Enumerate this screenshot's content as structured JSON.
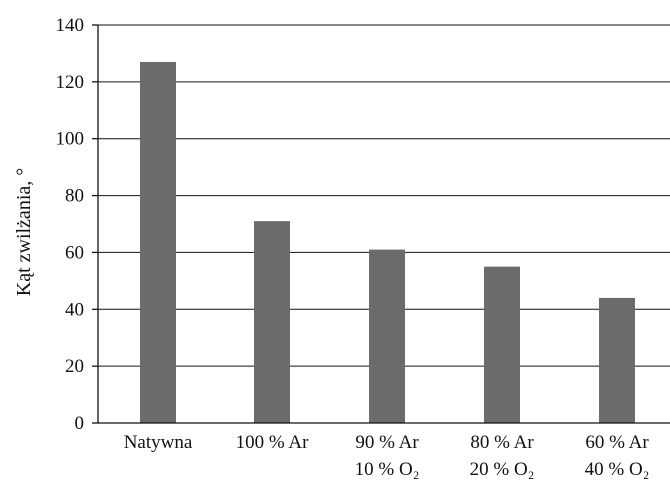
{
  "chart_data": {
    "type": "bar",
    "title": "",
    "xlabel": "",
    "ylabel": "Kąt zwilżania, °",
    "ylim": [
      0,
      140
    ],
    "yticks": [
      0,
      20,
      40,
      60,
      80,
      100,
      120,
      140
    ],
    "grid": true,
    "categories": [
      [
        "Natywna"
      ],
      [
        "100 % Ar"
      ],
      [
        "90 % Ar",
        "10 % O₂"
      ],
      [
        "80 % Ar",
        "20 % O₂"
      ],
      [
        "60 % Ar",
        "40 % O₂"
      ]
    ],
    "values": [
      127,
      71,
      61,
      55,
      44
    ],
    "bar_color": "#6b6b6e"
  }
}
